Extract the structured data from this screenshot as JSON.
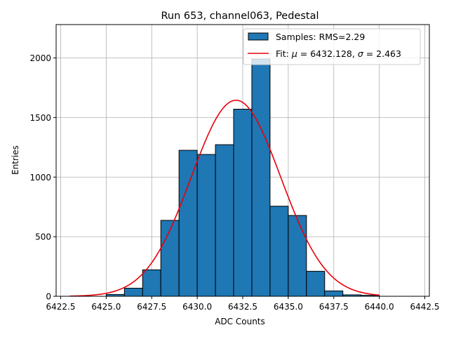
{
  "chart_data": {
    "type": "bar",
    "title": "Run 653, channel063, Pedestal",
    "xlabel": "ADC Counts",
    "ylabel": "Entries",
    "xlim": [
      6422.25,
      6442.75
    ],
    "ylim": [
      0,
      2280
    ],
    "xticks": [
      6422.5,
      6425.0,
      6427.5,
      6430.0,
      6432.5,
      6435.0,
      6437.5,
      6440.0,
      6442.5
    ],
    "xtick_labels": [
      "6422.5",
      "6425.0",
      "6427.5",
      "6430.0",
      "6432.5",
      "6435.0",
      "6437.5",
      "6440.0",
      "6442.5"
    ],
    "yticks": [
      0,
      500,
      1000,
      1500,
      2000
    ],
    "ytick_labels": [
      "0",
      "500",
      "1000",
      "1500",
      "2000"
    ],
    "grid": true,
    "legend_position": "top-right",
    "bins": [
      {
        "left": 6425,
        "right": 6426,
        "count": 15
      },
      {
        "left": 6426,
        "right": 6427,
        "count": 68
      },
      {
        "left": 6427,
        "right": 6428,
        "count": 222
      },
      {
        "left": 6428,
        "right": 6429,
        "count": 637
      },
      {
        "left": 6429,
        "right": 6430,
        "count": 1225
      },
      {
        "left": 6430,
        "right": 6431,
        "count": 1190
      },
      {
        "left": 6431,
        "right": 6432,
        "count": 1272
      },
      {
        "left": 6432,
        "right": 6433,
        "count": 1570
      },
      {
        "left": 6433,
        "right": 6434,
        "count": 1990
      },
      {
        "left": 6434,
        "right": 6435,
        "count": 756
      },
      {
        "left": 6435,
        "right": 6436,
        "count": 678
      },
      {
        "left": 6436,
        "right": 6437,
        "count": 210
      },
      {
        "left": 6437,
        "right": 6438,
        "count": 45
      },
      {
        "left": 6438,
        "right": 6439,
        "count": 12
      },
      {
        "left": 6439,
        "right": 6440,
        "count": 8
      }
    ],
    "fit": {
      "mu": 6432.128,
      "sigma": 2.463,
      "amplitude": 1645,
      "x_range": [
        6423,
        6440
      ]
    },
    "series": [
      {
        "name": "Samples: RMS=2.29",
        "color": "#1f77b4",
        "kind": "histogram"
      },
      {
        "name": "Fit: μ = 6432.128, σ = 2.463",
        "color": "#e8000b",
        "kind": "line"
      }
    ],
    "legend": {
      "samples_label": "Samples: RMS=2.29",
      "fit_prefix": "Fit: ",
      "mu_symbol": "μ",
      "mu_value": " = 6432.128, ",
      "sigma_symbol": "σ",
      "sigma_value": " = 2.463"
    }
  }
}
